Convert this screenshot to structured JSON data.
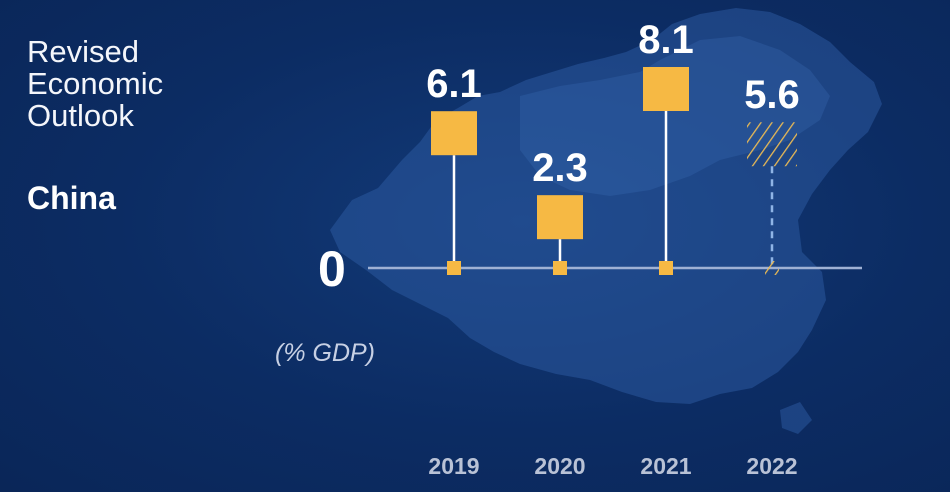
{
  "title_lines": [
    "Revised",
    "Economic",
    "Outlook"
  ],
  "country": "China",
  "zero_label": "0",
  "units_label": "(% GDP)",
  "colors": {
    "marker": "#f6b944",
    "stem": "#ffffff",
    "baseline": "#9fb1d4",
    "projection_stem": "#8fb4e6",
    "year_label": "#b9c2d6"
  },
  "chart_data": {
    "type": "bar",
    "style": "lollipop",
    "categories": [
      "2019",
      "2020",
      "2021",
      "2022"
    ],
    "values": [
      6.1,
      2.3,
      8.1,
      5.6
    ],
    "value_labels": [
      "6.1",
      "2.3",
      "8.1",
      "5.6"
    ],
    "projected": [
      false,
      false,
      false,
      true
    ],
    "ylabel": "(% GDP)",
    "ylim": [
      0,
      8.1
    ],
    "background": "map of China"
  }
}
